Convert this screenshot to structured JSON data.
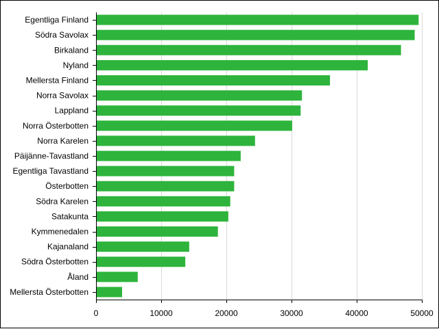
{
  "chart_data": {
    "type": "bar",
    "orientation": "horizontal",
    "categories": [
      "Egentliga Finland",
      "Södra Savolax",
      "Birkaland",
      "Nyland",
      "Mellersta Finland",
      "Norra Savolax",
      "Lappland",
      "Norra Österbotten",
      "Norra Karelen",
      "Päijänne-Tavastland",
      "Egentliga Tavastland",
      "Österbotten",
      "Södra Karelen",
      "Satakunta",
      "Kymmenedalen",
      "Kajanaland",
      "Södra Österbotten",
      "Åland",
      "Mellersta Österbotten"
    ],
    "values": [
      49500,
      48900,
      46800,
      41700,
      35900,
      31600,
      31400,
      30100,
      24400,
      22200,
      21200,
      21200,
      20600,
      20300,
      18700,
      14300,
      13700,
      6400,
      4000
    ],
    "xlim": [
      0,
      50000
    ],
    "xticks": [
      0,
      10000,
      20000,
      30000,
      40000,
      50000
    ],
    "xtick_labels": [
      "0",
      "10000",
      "20000",
      "30000",
      "40000",
      "50000"
    ],
    "title": "",
    "xlabel": "",
    "ylabel": "",
    "grid": "vertical",
    "legend": "none",
    "bar_color": "#2eb43c",
    "grid_color": "#d9d9d9",
    "axis_color": "#000000",
    "frame_color": "#000000"
  }
}
